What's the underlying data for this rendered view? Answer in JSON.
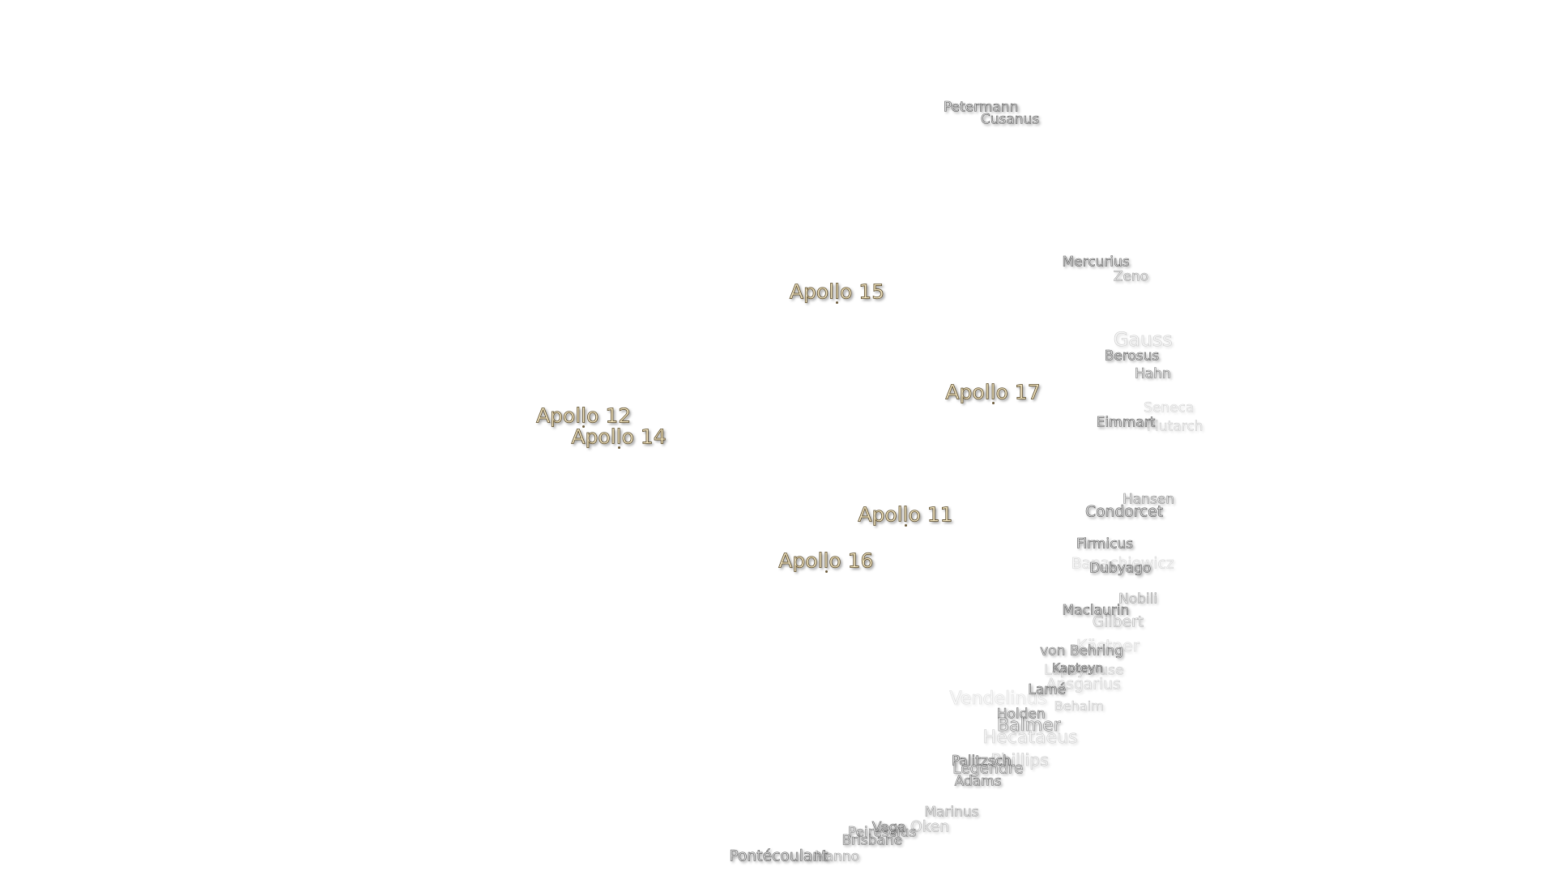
{
  "apollo_sites": [
    "Apollo 15",
    "Apollo 17",
    "Apollo 12",
    "Apollo 14",
    "Apollo 11",
    "Apollo 16"
  ],
  "features": [
    "Petermann",
    "Cusanus",
    "Mercurius",
    "Zeno",
    "Gauss",
    "Berosus",
    "Hahn",
    "Seneca",
    "Plutarch",
    "Eimmart",
    "Hansen",
    "Condorcet",
    "Firmicus",
    "Banachiewicz",
    "Dubyago",
    "Nobili",
    "Maclaurin",
    "Gilbert",
    "Kästner",
    "von Behring",
    "Kapteyn",
    "Lapeyrouse",
    "Ansgarius",
    "Lamé",
    "Vendelinus",
    "Behaim",
    "Holden",
    "Balmer",
    "Hecataeus",
    "Phillips",
    "Palitzsch",
    "Legendre",
    "Adams",
    "Marinus",
    "Oken",
    "Vega",
    "Peirescius",
    "Brisbane",
    "Pontécoulant",
    "Hanno"
  ]
}
